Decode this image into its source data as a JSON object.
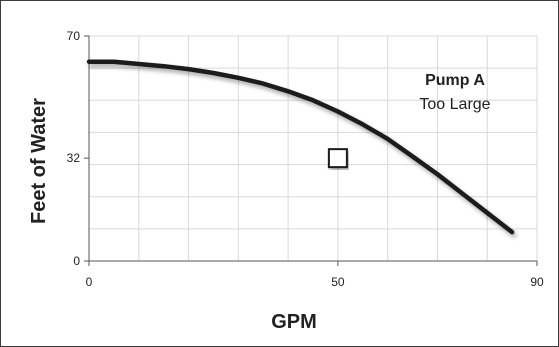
{
  "chart_data": {
    "type": "line",
    "title": "",
    "xlabel": "GPM",
    "ylabel": "Feet of Water",
    "xlim": [
      0,
      90
    ],
    "ylim": [
      0,
      70
    ],
    "x_ticks": [
      0,
      50,
      90
    ],
    "y_ticks": [
      0,
      32,
      70
    ],
    "grid": true,
    "series": [
      {
        "x": [
          0,
          5,
          10,
          15,
          20,
          25,
          30,
          35,
          40,
          45,
          50,
          55,
          60,
          65,
          70,
          75,
          80,
          85
        ],
        "y": [
          62,
          62,
          61.3,
          60.6,
          59.7,
          58.5,
          57,
          55.2,
          52.8,
          50,
          46.5,
          42.5,
          38,
          32.5,
          27,
          21,
          15,
          9
        ],
        "color": "#1a1a1a"
      }
    ],
    "annotations": [
      {
        "text_bold": "Pump A",
        "text": "Too Large"
      }
    ],
    "operating_point": {
      "x": 50,
      "y": 32
    }
  }
}
